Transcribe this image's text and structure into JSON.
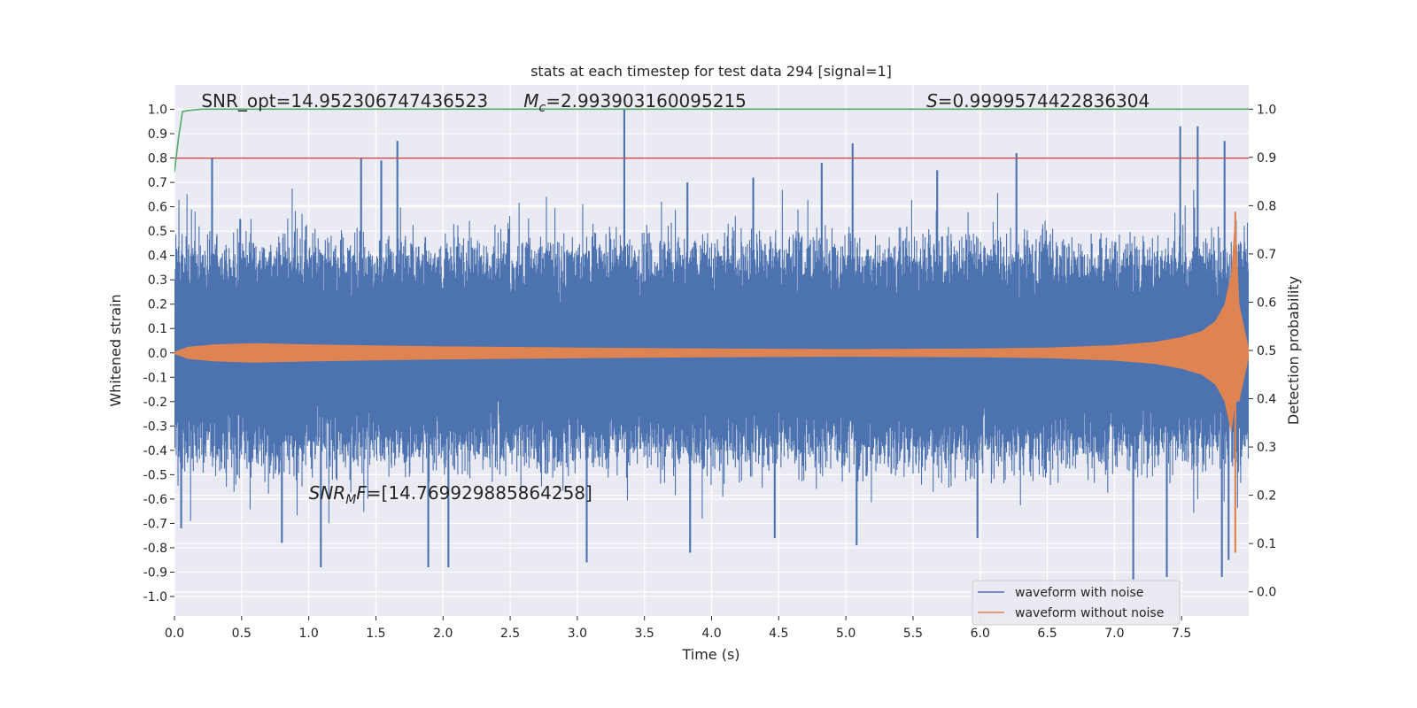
{
  "chart_data": {
    "type": "line",
    "title": "stats at each timestep for test data 294 [signal=1]",
    "xlabel": "Time (s)",
    "ylabel_left": "Whitened strain",
    "ylabel_right": "Detection probability",
    "xlim": [
      0.0,
      8.0
    ],
    "ylim_left": [
      -1.08,
      1.1
    ],
    "ylim_right": [
      -0.05,
      1.05
    ],
    "x_ticks": [
      "0.0",
      "0.5",
      "1.0",
      "1.5",
      "2.0",
      "2.5",
      "3.0",
      "3.5",
      "4.0",
      "4.5",
      "5.0",
      "5.5",
      "6.0",
      "6.5",
      "7.0",
      "7.5"
    ],
    "x_tick_values": [
      0.0,
      0.5,
      1.0,
      1.5,
      2.0,
      2.5,
      3.0,
      3.5,
      4.0,
      4.5,
      5.0,
      5.5,
      6.0,
      6.5,
      7.0,
      7.5
    ],
    "y_ticks_left": [
      "1.0",
      "0.9",
      "0.8",
      "0.7",
      "0.6",
      "0.5",
      "0.4",
      "0.3",
      "0.2",
      "0.1",
      "0.0",
      "-0.1",
      "-0.2",
      "-0.3",
      "-0.4",
      "-0.5",
      "-0.6",
      "-0.7",
      "-0.8",
      "-0.9",
      "-1.0"
    ],
    "y_tick_values_left": [
      1.0,
      0.9,
      0.8,
      0.7,
      0.6,
      0.5,
      0.4,
      0.3,
      0.2,
      0.1,
      0.0,
      -0.1,
      -0.2,
      -0.3,
      -0.4,
      -0.5,
      -0.6,
      -0.7,
      -0.8,
      -0.9,
      -1.0
    ],
    "y_ticks_right": [
      "1.0",
      "0.9",
      "0.8",
      "0.7",
      "0.6",
      "0.5",
      "0.4",
      "0.3",
      "0.2",
      "0.1",
      "0.0"
    ],
    "y_tick_values_right": [
      1.0,
      0.9,
      0.8,
      0.7,
      0.6,
      0.5,
      0.4,
      0.3,
      0.2,
      0.1,
      0.0
    ],
    "grid": true,
    "legend_position": "lower-right",
    "series": [
      {
        "name": "waveform with noise",
        "color": "#4c72b0",
        "axis": "left",
        "kind": "noisy-band",
        "band_abs_mean": 0.36,
        "peaks_x": [
          0.28,
          0.49,
          1.39,
          1.54,
          1.66,
          2.41,
          3.35,
          3.82,
          4.31,
          4.82,
          5.05,
          5.68,
          6.27,
          7.14,
          7.49,
          7.62,
          7.82
        ],
        "peaks_y": [
          0.8,
          0.55,
          0.8,
          0.79,
          0.87,
          -0.07,
          1.0,
          0.7,
          0.72,
          0.78,
          0.86,
          0.75,
          0.82,
          -0.92,
          0.93,
          0.93,
          0.87
        ],
        "troughs_x": [
          0.05,
          0.8,
          1.09,
          1.89,
          2.04,
          3.07,
          3.84,
          4.47,
          5.08,
          5.98,
          7.14,
          7.39,
          7.8,
          7.85
        ],
        "troughs_y": [
          -0.72,
          -0.78,
          -0.88,
          -0.88,
          -0.88,
          -0.86,
          -0.82,
          -0.76,
          -0.79,
          -0.76,
          -0.93,
          -0.92,
          -0.92,
          -0.85
        ]
      },
      {
        "name": "waveform without noise",
        "color": "#dd8452",
        "axis": "left",
        "kind": "chirp-envelope",
        "envelope_x": [
          0.0,
          0.1,
          0.3,
          0.6,
          1.0,
          2.0,
          3.0,
          4.0,
          5.0,
          6.0,
          6.5,
          7.0,
          7.3,
          7.5,
          7.65,
          7.75,
          7.82,
          7.87,
          7.9,
          7.93,
          8.0
        ],
        "envelope_y": [
          0.005,
          0.025,
          0.035,
          0.04,
          0.035,
          0.027,
          0.022,
          0.018,
          0.016,
          0.018,
          0.022,
          0.032,
          0.045,
          0.065,
          0.09,
          0.13,
          0.2,
          0.33,
          0.58,
          0.2,
          0.02
        ],
        "min_y": -0.82
      },
      {
        "name": "",
        "color": "#55a868",
        "axis": "right",
        "x": [
          0.0,
          0.03,
          0.06,
          0.1,
          0.2,
          8.0
        ],
        "y": [
          0.87,
          0.94,
          0.995,
          0.997,
          1.0,
          1.0
        ]
      }
    ],
    "hlines": [
      {
        "axis": "left",
        "y": 0.8,
        "color": "#c44e52"
      }
    ],
    "annotations": [
      {
        "text": "SNR_opt=14.952306747436523",
        "x": 0.2,
        "y": 1.01
      },
      {
        "text_mathvar": "M",
        "text_sub": "c",
        "text_rest": "=2.993903160095215",
        "x": 2.6,
        "y": 1.01
      },
      {
        "text_mathvar": "S",
        "text_rest": "=0.9999574422836304",
        "x": 5.6,
        "y": 1.01
      },
      {
        "text_mathvar": "SNR",
        "text_sub": "M",
        "text_mid": "F",
        "text_rest": "=[14.769929885864258]",
        "x": 1.0,
        "y": -0.6
      }
    ]
  }
}
